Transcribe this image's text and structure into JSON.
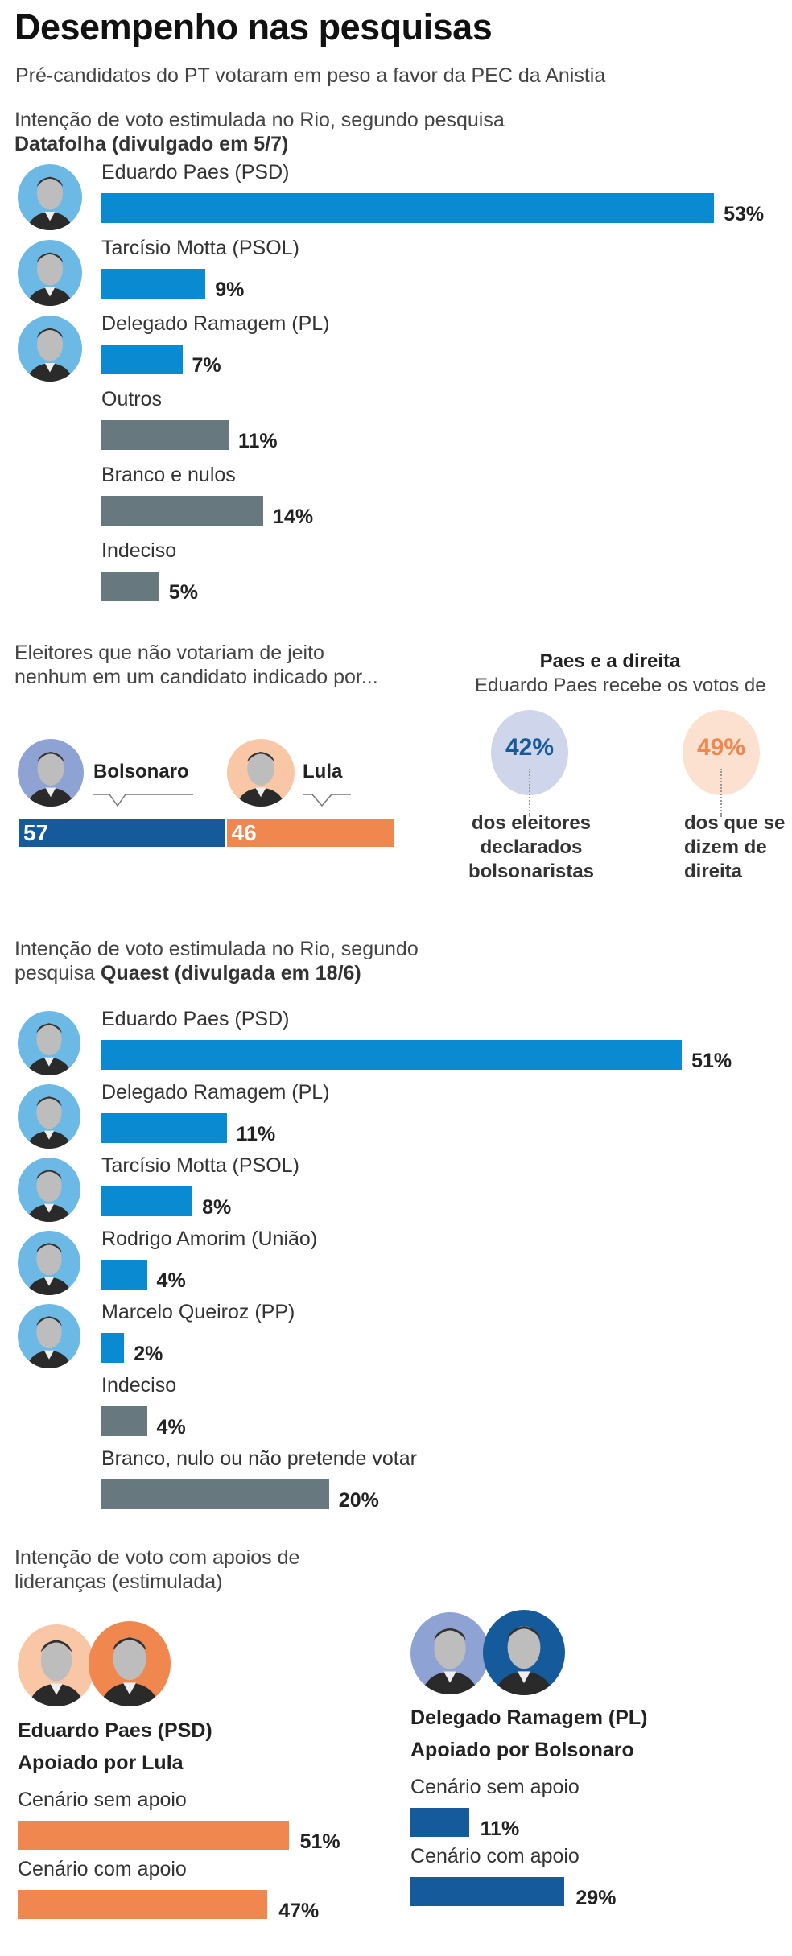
{
  "header": {
    "title": "Desempenho nas pesquisas",
    "subtitle": "Pré-candidatos do PT votaram em peso a favor da PEC da Anistia"
  },
  "colors": {
    "candidate_bar": "#0a8bd1",
    "other_bar": "#67797f",
    "bolsonaro_blue": "#155a9a",
    "lula_orange": "#ef874f",
    "avatar_blue": "#6cb9e6",
    "circle_blue": "#cfd5ea",
    "circle_orange": "#fde1d0"
  },
  "chart_data": [
    {
      "type": "bar",
      "title": "Intenção de voto estimulada no Rio, segundo pesquisa",
      "title_bold": "Datafolha (divulgado em 5/7)",
      "categories": [
        "Eduardo Paes (PSD)",
        "Tarcísio Motta (PSOL)",
        "Delegado Ramagem (PL)",
        "Outros",
        "Branco e nulos",
        "Indeciso"
      ],
      "values": [
        53,
        9,
        7,
        11,
        14,
        5
      ],
      "value_labels": [
        "53%",
        "9%",
        "7%",
        "11%",
        "14%",
        "5%"
      ],
      "has_photo": [
        true,
        true,
        true,
        false,
        false,
        false
      ]
    },
    {
      "type": "bar",
      "title": "Eleitores que não votariam de jeito nenhum em um candidato indicado por...",
      "categories": [
        "Bolsonaro",
        "Lula"
      ],
      "values": [
        57,
        46
      ],
      "value_labels": [
        "57",
        "46"
      ]
    },
    {
      "type": "bar",
      "title": "Paes e a direita",
      "subtitle": "Eduardo Paes recebe os votos de",
      "categories": [
        "dos eleitores declarados bolsonaristas",
        "dos que se dizem de direita"
      ],
      "values": [
        42,
        49
      ],
      "value_labels": [
        "42%",
        "49%"
      ]
    },
    {
      "type": "bar",
      "title": "Intenção de voto estimulada no Rio, segundo",
      "title_line2": "pesquisa",
      "title_bold": "Quaest (divulgada em 18/6)",
      "categories": [
        "Eduardo Paes (PSD)",
        "Delegado Ramagem (PL)",
        "Tarcísio Motta (PSOL)",
        "Rodrigo Amorim (União)",
        "Marcelo Queiroz (PP)",
        "Indeciso",
        "Branco, nulo ou não pretende votar"
      ],
      "values": [
        51,
        11,
        8,
        4,
        2,
        4,
        20
      ],
      "value_labels": [
        "51%",
        "11%",
        "8%",
        "4%",
        "2%",
        "4%",
        "20%"
      ],
      "has_photo": [
        true,
        true,
        true,
        true,
        true,
        false,
        false
      ]
    },
    {
      "type": "bar",
      "title": "Intenção de voto com apoios de lideranças (estimulada)",
      "groups": [
        {
          "candidate": "Eduardo Paes (PSD)",
          "support": "Apoiado por Lula",
          "categories": [
            "Cenário sem apoio",
            "Cenário com apoio"
          ],
          "values": [
            51,
            47
          ],
          "value_labels": [
            "51%",
            "47%"
          ]
        },
        {
          "candidate": "Delegado Ramagem (PL)",
          "support": "Apoiado por Bolsonaro",
          "categories": [
            "Cenário sem apoio",
            "Cenário com apoio"
          ],
          "values": [
            11,
            29
          ],
          "value_labels": [
            "11%",
            "29%"
          ]
        }
      ]
    }
  ]
}
